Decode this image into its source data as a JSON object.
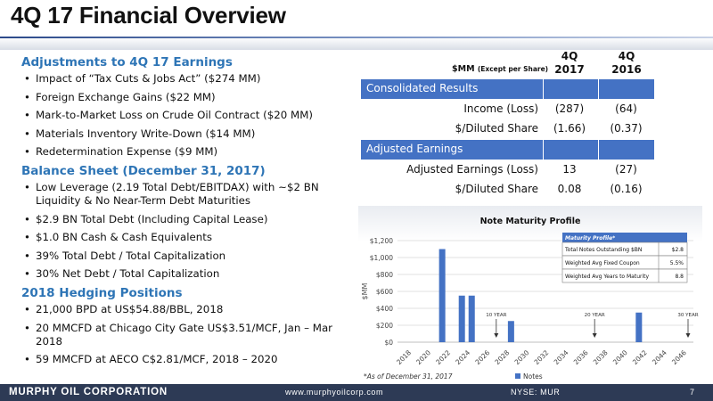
{
  "slide": {
    "title": "4Q 17 Financial Overview",
    "colors": {
      "accent_blue": "#2e75b6",
      "table_band": "#4472c4",
      "footer_bg": "#2d3a55",
      "bar_color": "#4472c4"
    }
  },
  "left": {
    "sections": [
      {
        "heading": "Adjustments to 4Q 17 Earnings",
        "bullets": [
          "Impact of “Tax Cuts & Jobs Act” ($274 MM)",
          "Foreign Exchange Gains ($22 MM)",
          "Mark-to-Market Loss on Crude Oil Contract ($20 MM)",
          "Materials Inventory Write-Down ($14 MM)",
          "Redetermination Expense ($9 MM)"
        ]
      },
      {
        "heading": "Balance Sheet (December 31, 2017)",
        "bullets": [
          "Low Leverage (2.19 Total Debt/EBITDAX) with ~$2 BN Liquidity & No Near-Term Debt Maturities",
          "$2.9 BN Total Debt (Including Capital Lease)",
          "$1.0 BN Cash & Cash Equivalents",
          "39% Total Debt / Total Capitalization",
          "30% Net Debt / Total Capitalization"
        ]
      },
      {
        "heading": "2018 Hedging Positions",
        "bullets": [
          "21,000 BPD at US$54.88/BBL, 2018",
          "20 MMCFD at Chicago City Gate US$3.51/MCF, Jan – Mar 2018",
          "59 MMCFD at AECO C$2.81/MCF, 2018 – 2020"
        ]
      }
    ]
  },
  "table": {
    "unit_label": "$MM",
    "unit_note": "(Except per Share)",
    "col1": "4Q 2017",
    "col1_a": "4Q",
    "col1_b": "2017",
    "col2_a": "4Q",
    "col2_b": "2016",
    "band1": "Consolidated Results",
    "band2": "Adjusted Earnings",
    "rows_consolidated": [
      {
        "label": "Income (Loss)",
        "v2017": "(287)",
        "v2016": "(64)"
      },
      {
        "label": "$/Diluted Share",
        "v2017": "(1.66)",
        "v2016": "(0.37)"
      }
    ],
    "rows_adjusted": [
      {
        "label": "Adjusted Earnings (Loss)",
        "v2017": "13",
        "v2016": "(27)"
      },
      {
        "label": "$/Diluted Share",
        "v2017": "0.08",
        "v2016": "(0.16)"
      }
    ]
  },
  "chart_data": {
    "type": "bar",
    "title": "Note Maturity Profile",
    "ylabel": "$MM",
    "ylim": [
      0,
      1200
    ],
    "yticks": [
      "$0",
      "$200",
      "$400",
      "$600",
      "$800",
      "$1,000",
      "$1,200"
    ],
    "xticks": [
      "2018",
      "2020",
      "2022",
      "2024",
      "2026",
      "2028",
      "2030",
      "2032",
      "2034",
      "2036",
      "2038",
      "2040",
      "2042",
      "2044",
      "2046"
    ],
    "x_start": 2018,
    "x_end": 2047,
    "series": [
      {
        "name": "Notes",
        "points": [
          {
            "year": 2022,
            "value": 1100
          },
          {
            "year": 2024,
            "value": 550
          },
          {
            "year": 2025,
            "value": 550
          },
          {
            "year": 2029,
            "value": 250
          },
          {
            "year": 2042,
            "value": 350
          }
        ]
      }
    ],
    "markers": [
      {
        "year": 2027.5,
        "label": "10 YEAR"
      },
      {
        "year": 2037.5,
        "label": "20 YEAR"
      },
      {
        "year": 2047,
        "label": "30 YEAR"
      }
    ],
    "legend_position": "bottom",
    "grid": true,
    "inset": {
      "title": "Maturity Profile*",
      "rows": [
        {
          "label": "Total Notes Outstanding $BN",
          "value": "$2.8"
        },
        {
          "label": "Weighted Avg Fixed Coupon",
          "value": "5.5%"
        },
        {
          "label": "Weighted Avg Years to Maturity",
          "value": "8.8"
        }
      ]
    }
  },
  "chart_note": "*As of December 31, 2017",
  "footer": {
    "company": "MURPHY OIL CORPORATION",
    "website": "www.murphyoilcorp.com",
    "ticker": "NYSE: MUR",
    "page": "7"
  }
}
